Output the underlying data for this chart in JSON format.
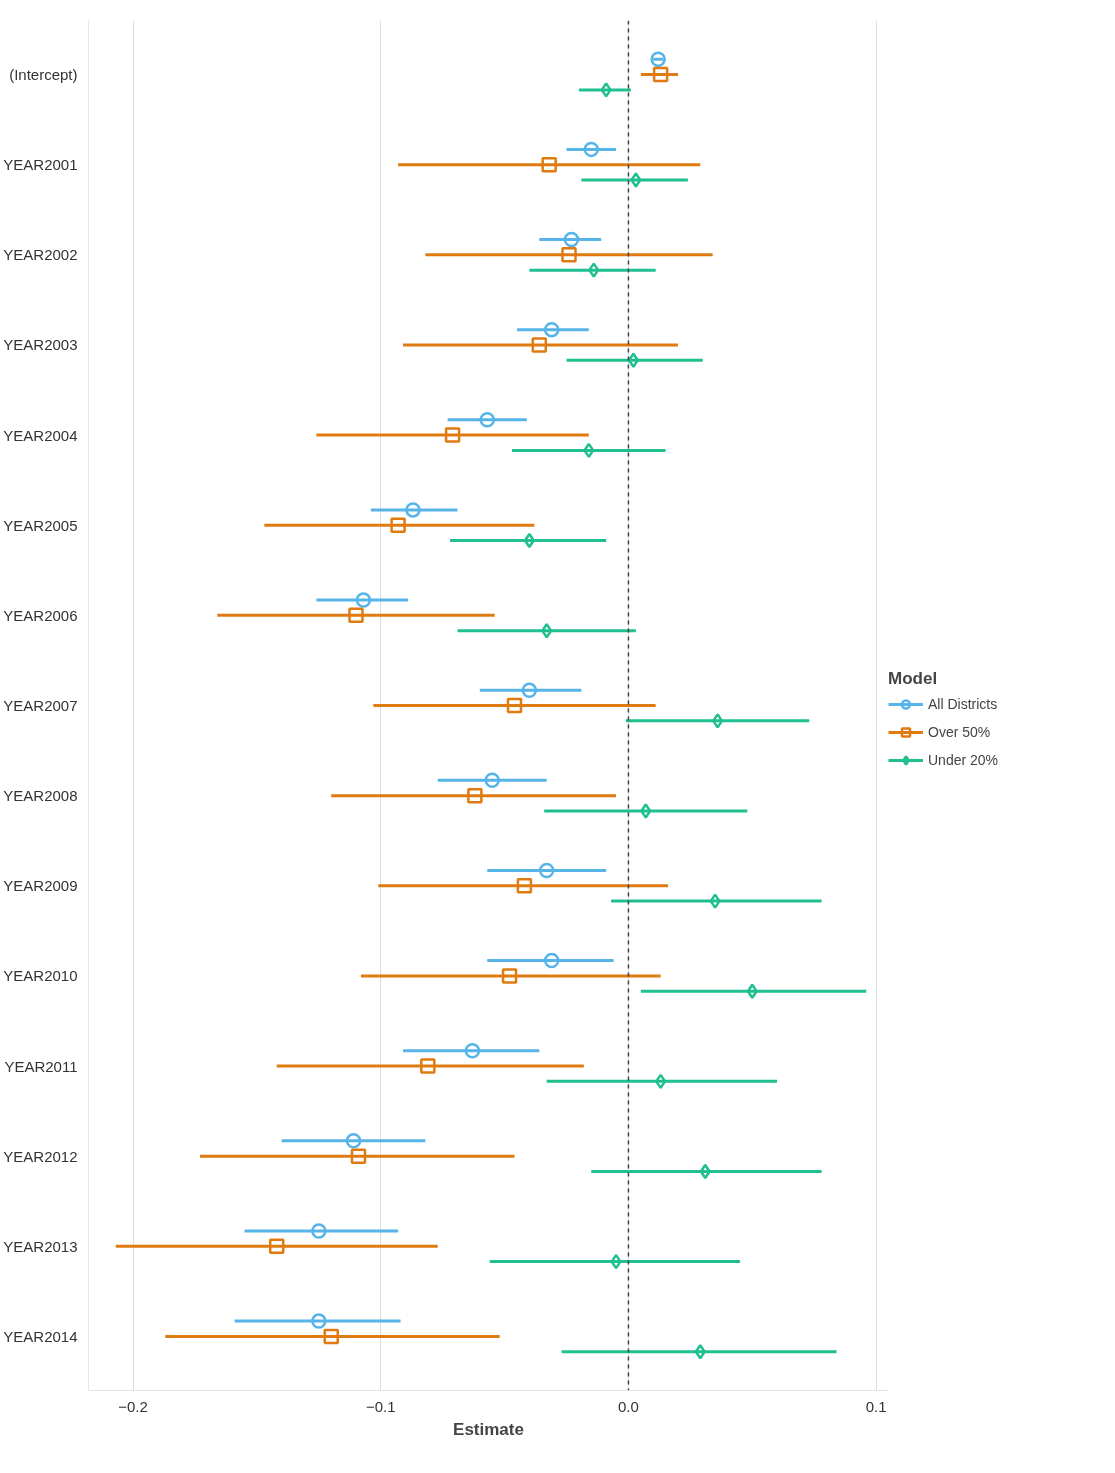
{
  "chart_data": {
    "type": "scatter",
    "orientation": "horizontal",
    "xlabel": "Estimate",
    "legend_title": "Model",
    "legend": "right",
    "grid": "x",
    "categories": [
      "(Intercept)",
      "YEAR2001",
      "YEAR2002",
      "YEAR2003",
      "YEAR2004",
      "YEAR2005",
      "YEAR2006",
      "YEAR2007",
      "YEAR2008",
      "YEAR2009",
      "YEAR2010",
      "YEAR2011",
      "YEAR2012",
      "YEAR2013",
      "YEAR2014"
    ],
    "xlim": [
      -0.218,
      0.105
    ],
    "xticks": [
      -0.2,
      -0.1,
      {
        "value": 0,
        "label": "0.0"
      },
      0.1
    ],
    "ref_lines": [
      {
        "axis": "x",
        "value": 0,
        "label": null,
        "color": "#444444",
        "line_style": "dashed"
      }
    ],
    "series": [
      {
        "name": "All Districts",
        "color": "#56b4e9",
        "marker": "circle",
        "values": [
          0.012,
          -0.015,
          -0.023,
          -0.031,
          -0.057,
          -0.087,
          -0.107,
          -0.04,
          -0.055,
          -0.033,
          -0.031,
          -0.063,
          -0.111,
          -0.125,
          -0.125
        ],
        "errors": [
          [
            0.01,
            0.014
          ],
          [
            -0.025,
            -0.005
          ],
          [
            -0.036,
            -0.011
          ],
          [
            -0.045,
            -0.016
          ],
          [
            -0.073,
            -0.041
          ],
          [
            -0.104,
            -0.069
          ],
          [
            -0.126,
            -0.089
          ],
          [
            -0.06,
            -0.019
          ],
          [
            -0.077,
            -0.033
          ],
          [
            -0.057,
            -0.009
          ],
          [
            -0.057,
            -0.006
          ],
          [
            -0.091,
            -0.036
          ],
          [
            -0.14,
            -0.082
          ],
          [
            -0.155,
            -0.093
          ],
          [
            -0.159,
            -0.092
          ]
        ]
      },
      {
        "name": "Over 50%",
        "color": "#e07b12",
        "marker": "square",
        "values": [
          0.013,
          -0.032,
          -0.024,
          -0.036,
          -0.071,
          -0.093,
          -0.11,
          -0.046,
          -0.062,
          -0.042,
          -0.048,
          -0.081,
          -0.109,
          -0.142,
          -0.12
        ],
        "errors": [
          [
            0.005,
            0.02
          ],
          [
            -0.093,
            0.029
          ],
          [
            -0.082,
            0.034
          ],
          [
            -0.091,
            0.02
          ],
          [
            -0.126,
            -0.016
          ],
          [
            -0.147,
            -0.038
          ],
          [
            -0.166,
            -0.054
          ],
          [
            -0.103,
            0.011
          ],
          [
            -0.12,
            -0.005
          ],
          [
            -0.101,
            0.016
          ],
          [
            -0.108,
            0.013
          ],
          [
            -0.142,
            -0.018
          ],
          [
            -0.173,
            -0.046
          ],
          [
            -0.207,
            -0.077
          ],
          [
            -0.187,
            -0.052
          ]
        ]
      },
      {
        "name": "Under 20%",
        "color": "#1fbf8f",
        "marker": "diamond",
        "values": [
          -0.009,
          0.003,
          -0.014,
          0.002,
          -0.016,
          -0.04,
          -0.033,
          0.036,
          0.007,
          0.035,
          0.05,
          0.013,
          0.031,
          -0.005,
          0.029
        ],
        "errors": [
          [
            -0.02,
            0.001
          ],
          [
            -0.019,
            0.024
          ],
          [
            -0.04,
            0.011
          ],
          [
            -0.025,
            0.03
          ],
          [
            -0.047,
            0.015
          ],
          [
            -0.072,
            -0.009
          ],
          [
            -0.069,
            0.003
          ],
          [
            -0.001,
            0.073
          ],
          [
            -0.034,
            0.048
          ],
          [
            -0.007,
            0.078
          ],
          [
            0.005,
            0.096
          ],
          [
            -0.033,
            0.06
          ],
          [
            -0.015,
            0.078
          ],
          [
            -0.056,
            0.045
          ],
          [
            -0.027,
            0.084
          ]
        ]
      }
    ]
  }
}
